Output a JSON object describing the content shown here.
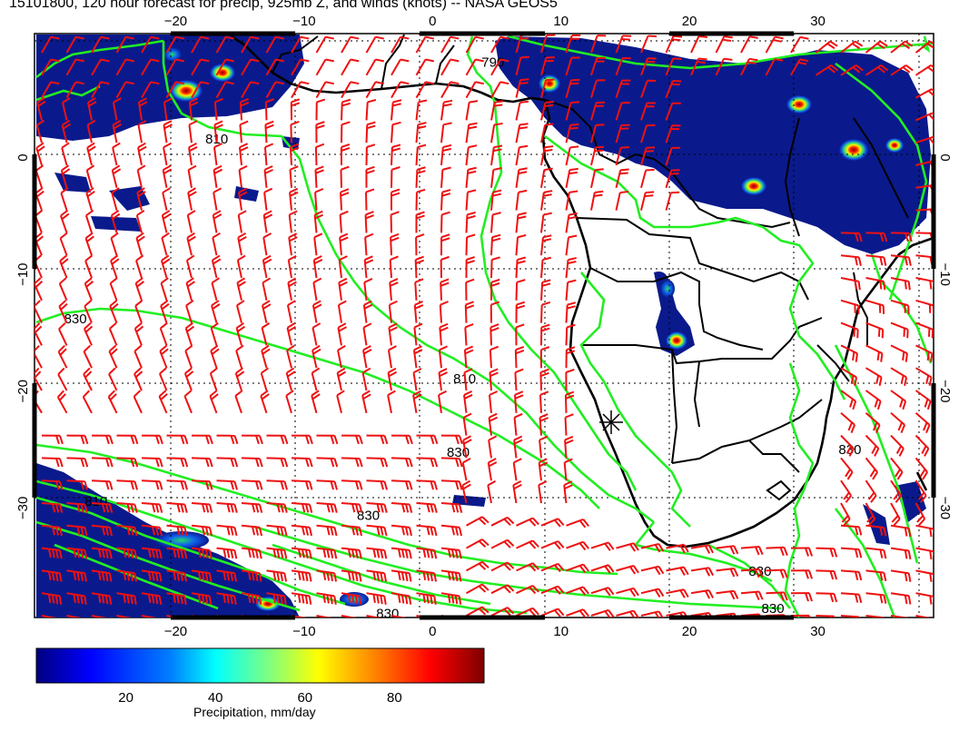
{
  "title": "15101800, 120 hour forecast for precip, 925mb Z, and winds (knots) -- NASA GEOS5",
  "map": {
    "lon_range": [
      -30,
      40
    ],
    "lat_range": [
      -40,
      10
    ],
    "lon_ticks": [
      {
        "value": -20,
        "label": "−20"
      },
      {
        "value": -10,
        "label": "−10"
      },
      {
        "value": 0,
        "label": "0"
      },
      {
        "value": 10,
        "label": "10"
      },
      {
        "value": 20,
        "label": "20"
      },
      {
        "value": 30,
        "label": "30"
      }
    ],
    "lat_ticks": [
      {
        "value": 0,
        "label": "0"
      },
      {
        "value": -10,
        "label": "−10"
      },
      {
        "value": -20,
        "label": "−20"
      },
      {
        "value": -30,
        "label": "−30"
      }
    ],
    "contour_labels": [
      {
        "text": "790",
        "lon": 4.7,
        "lat": 7.8
      },
      {
        "text": "810",
        "lon": -16.8,
        "lat": 1.2
      },
      {
        "text": "830",
        "lon": -27.8,
        "lat": -14.2
      },
      {
        "text": "810",
        "lon": 2.5,
        "lat": -19.3
      },
      {
        "text": "830",
        "lon": 2.0,
        "lat": -25.6
      },
      {
        "text": "810",
        "lon": -26.2,
        "lat": -29.8
      },
      {
        "text": "830",
        "lon": -5.0,
        "lat": -31.0
      },
      {
        "text": "830",
        "lon": 32.5,
        "lat": -25.4
      },
      {
        "text": "830",
        "lon": 25.5,
        "lat": -35.8
      },
      {
        "text": "830",
        "lon": 26.5,
        "lat": -39.0
      },
      {
        "text": "830",
        "lon": -3.5,
        "lat": -39.4
      }
    ],
    "colors": {
      "contour": "#22ee22",
      "wind_barb": "#ee1111",
      "coast": "#000000",
      "precip_low": "#0a1a8c",
      "precip_high": "#800000"
    }
  },
  "colorbar": {
    "title": "Precipitation, mm/day",
    "range": [
      0,
      100
    ],
    "ticks": [
      {
        "value": 20,
        "label": "20"
      },
      {
        "value": 40,
        "label": "40"
      },
      {
        "value": 60,
        "label": "60"
      },
      {
        "value": 80,
        "label": "80"
      }
    ],
    "colors": [
      "#00007f",
      "#0000ff",
      "#007fff",
      "#00ffff",
      "#7fff7f",
      "#ffff00",
      "#ff7f00",
      "#ff0000",
      "#7f0000"
    ]
  }
}
